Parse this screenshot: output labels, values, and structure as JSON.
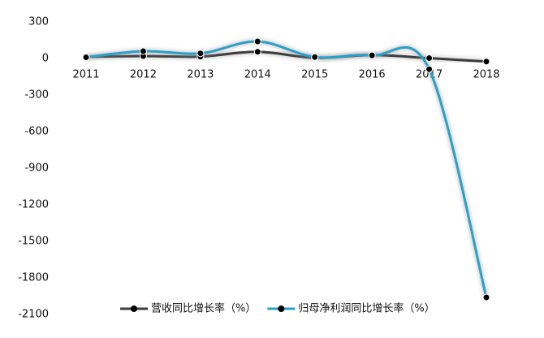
{
  "chart_data": {
    "type": "line",
    "categories": [
      "2011",
      "2012",
      "2013",
      "2014",
      "2015",
      "2016",
      "2017",
      "2018"
    ],
    "series": [
      {
        "name": "营收同比增长率（%）",
        "color": "#3d3d3d",
        "values": [
          14,
          20,
          16,
          55,
          5,
          28,
          3,
          -25
        ]
      },
      {
        "name": "归母净利润同比增长率（%）",
        "color": "#2aa0c9",
        "values": [
          10,
          60,
          42,
          140,
          12,
          26,
          -88,
          -1960
        ]
      }
    ],
    "ylim": [
      -2100,
      300
    ],
    "yticks": [
      -2100,
      -1800,
      -1500,
      -1200,
      -900,
      -600,
      -300,
      0,
      300
    ],
    "grid": false,
    "smooth": true,
    "legend": "bottom"
  }
}
